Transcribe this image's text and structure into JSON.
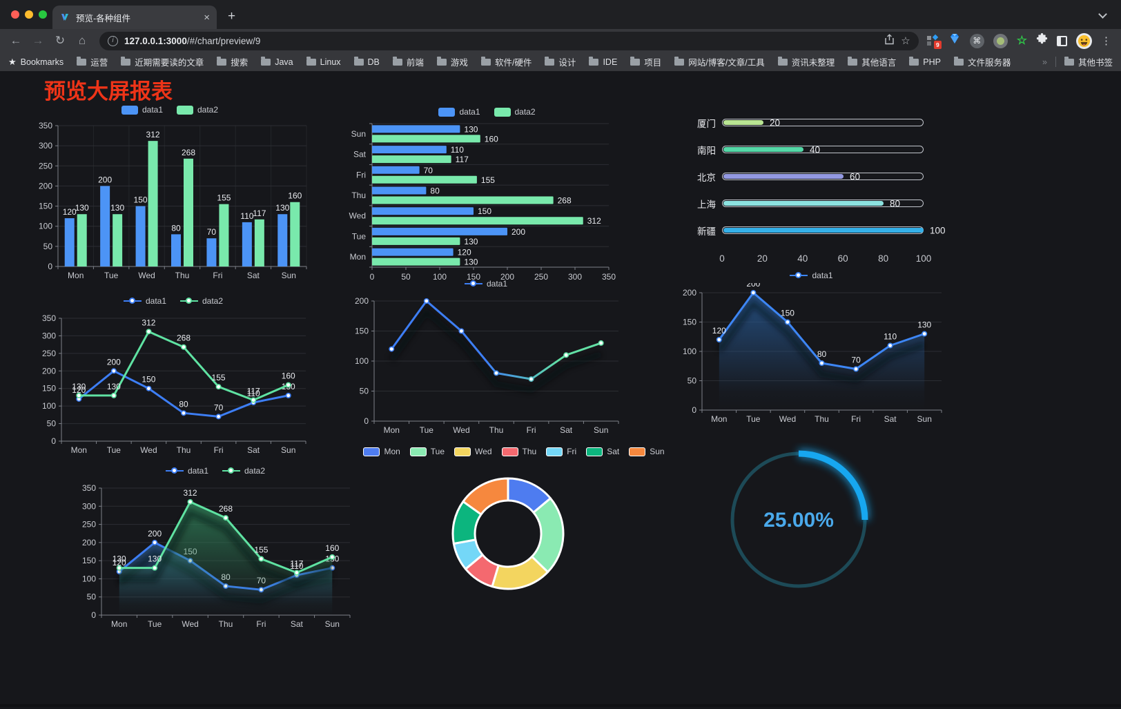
{
  "browser": {
    "tab": {
      "title": "预览-各种组件",
      "close_label": "×",
      "new_tab_label": "+"
    },
    "urlbar": {
      "url_host": "127.0.0.1:3000",
      "url_path": "/#/chart/preview/9"
    },
    "bookmarks_bar": {
      "root_label": "Bookmarks",
      "folders": [
        "运营",
        "近期需要读的文章",
        "搜索",
        "Java",
        "Linux",
        "DB",
        "前端",
        "游戏",
        "软件/硬件",
        "设计",
        "IDE",
        "项目",
        "网站/博客/文章/工具",
        "资讯未整理",
        "其他语言",
        "PHP",
        "文件服务器"
      ],
      "overflow_label": "»",
      "other_label": "其他书签"
    },
    "extensions_badge": "9"
  },
  "page": {
    "title": "预览大屏报表",
    "title_color": "#ee3418"
  },
  "chart_data": [
    {
      "type": "bar",
      "categories": [
        "Mon",
        "Tue",
        "Wed",
        "Thu",
        "Fri",
        "Sat",
        "Sun"
      ],
      "series": [
        {
          "name": "data1",
          "color": "#4c94f6",
          "values": [
            120,
            200,
            150,
            80,
            70,
            110,
            130
          ]
        },
        {
          "name": "data2",
          "color": "#79e9ac",
          "values": [
            130,
            130,
            312,
            268,
            155,
            117,
            160
          ]
        }
      ],
      "ylim": [
        0,
        350
      ],
      "ytick": 50,
      "labels": true,
      "legend": true,
      "legend_icon": "rect"
    },
    {
      "type": "bar-horizontal",
      "categories": [
        "Mon",
        "Tue",
        "Wed",
        "Thu",
        "Fri",
        "Sat",
        "Sun"
      ],
      "series": [
        {
          "name": "data1",
          "color": "#4c94f6",
          "values": [
            120,
            200,
            150,
            80,
            70,
            110,
            130
          ]
        },
        {
          "name": "data2",
          "color": "#79e9ac",
          "values": [
            130,
            130,
            312,
            268,
            155,
            117,
            160
          ]
        }
      ],
      "xlim": [
        0,
        350
      ],
      "xtick": 50,
      "labels": true,
      "legend": true,
      "legend_icon": "rect"
    },
    {
      "type": "progress",
      "items": [
        {
          "label": "厦门",
          "value": 20,
          "color": "#b9e593"
        },
        {
          "label": "南阳",
          "value": 40,
          "color": "#54d8a7"
        },
        {
          "label": "北京",
          "value": 60,
          "color": "#9399e2"
        },
        {
          "label": "上海",
          "value": 80,
          "color": "#8ce2e0"
        },
        {
          "label": "新疆",
          "value": 100,
          "color": "#34b0e9"
        }
      ],
      "max": 100,
      "xticks": [
        0,
        20,
        40,
        60,
        80,
        100
      ]
    },
    {
      "type": "line",
      "categories": [
        "Mon",
        "Tue",
        "Wed",
        "Thu",
        "Fri",
        "Sat",
        "Sun"
      ],
      "series": [
        {
          "name": "data1",
          "color": "#3d7ef5",
          "values": [
            120,
            200,
            150,
            80,
            70,
            110,
            130
          ]
        },
        {
          "name": "data2",
          "color": "#5fe2a2",
          "values": [
            130,
            130,
            312,
            268,
            155,
            117,
            160
          ]
        }
      ],
      "ylim": [
        0,
        350
      ],
      "ytick": 50,
      "labels": true,
      "legend": true,
      "legend_icon": "line"
    },
    {
      "type": "line",
      "categories": [
        "Mon",
        "Tue",
        "Wed",
        "Thu",
        "Fri",
        "Sat",
        "Sun"
      ],
      "series": [
        {
          "name": "data1",
          "gradient": [
            "#3d7ef5",
            "#62e0a5"
          ],
          "color": "#3d7ef5",
          "values": [
            120,
            200,
            150,
            80,
            70,
            110,
            130
          ]
        }
      ],
      "ylim": [
        0,
        200
      ],
      "ytick": 50,
      "labels": false,
      "legend": true,
      "legend_icon": "line",
      "shadow": true
    },
    {
      "type": "line",
      "categories": [
        "Mon",
        "Tue",
        "Wed",
        "Thu",
        "Fri",
        "Sat",
        "Sun"
      ],
      "series": [
        {
          "name": "data1",
          "color": "#3d86f5",
          "area_from": "#27578f",
          "values": [
            120,
            200,
            150,
            80,
            70,
            110,
            130
          ]
        }
      ],
      "ylim": [
        0,
        200
      ],
      "ytick": 50,
      "labels": true,
      "legend": true,
      "legend_icon": "line",
      "shadow": true
    },
    {
      "type": "line",
      "categories": [
        "Mon",
        "Tue",
        "Wed",
        "Thu",
        "Fri",
        "Sat",
        "Sun"
      ],
      "series": [
        {
          "name": "data1",
          "color": "#3d7ef5",
          "area_from": "#2a5685",
          "values": [
            120,
            200,
            150,
            80,
            70,
            110,
            130
          ]
        },
        {
          "name": "data2",
          "color": "#5fe2a2",
          "area_from": "#2f7d57",
          "values": [
            130,
            130,
            312,
            268,
            155,
            117,
            160
          ]
        }
      ],
      "ylim": [
        0,
        350
      ],
      "ytick": 50,
      "labels": true,
      "legend": true,
      "legend_icon": "line",
      "shadow": true
    },
    {
      "type": "pie",
      "items": [
        {
          "label": "Mon",
          "value": 120,
          "color": "#4e7cf0"
        },
        {
          "label": "Tue",
          "value": 200,
          "color": "#8aeab2"
        },
        {
          "label": "Wed",
          "value": 150,
          "color": "#f3d55f"
        },
        {
          "label": "Thu",
          "value": 80,
          "color": "#f4696f"
        },
        {
          "label": "Fri",
          "value": 70,
          "color": "#74d7f7"
        },
        {
          "label": "Sat",
          "value": 110,
          "color": "#0cb57e"
        },
        {
          "label": "Sun",
          "value": 130,
          "color": "#f6883e"
        }
      ],
      "inner_radius": 48,
      "outer_radius": 80,
      "legend": true,
      "legend_icon": "rect-bordered"
    },
    {
      "type": "gauge",
      "value": 25,
      "label": "25.00%",
      "arc_color": "#17a7f0",
      "track_color": "#1d4a57",
      "text_color": "#4aa9eb"
    }
  ]
}
